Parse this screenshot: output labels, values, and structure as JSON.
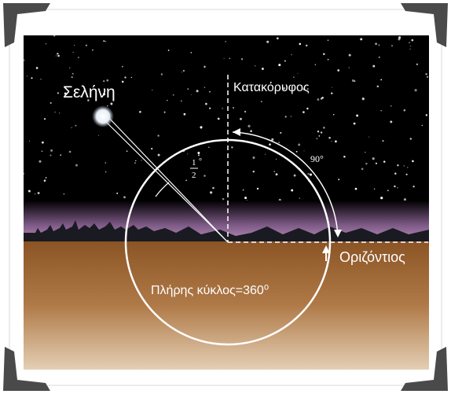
{
  "labels": {
    "moon": "Σελήνη",
    "vertical": "Κατακόρυφος",
    "right_angle": "90°",
    "moon_angle": {
      "numerator": "1",
      "denominator": "2",
      "unit": "°"
    },
    "horizontal": "Οριζόντιος",
    "full_circle": "Πλήρης κύκλος=360⁰"
  }
}
